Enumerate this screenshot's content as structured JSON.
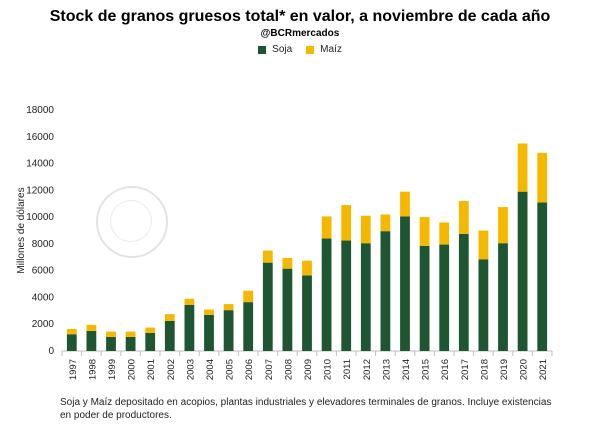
{
  "header": {
    "title": "Stock de granos gruesos total* en valor, a noviembre de cada año",
    "subtitle": "@BCRmercados"
  },
  "footnote": "Soja y Maíz depositado en acopios, plantas industriales y elevadores terminales de granos. Incluye existencias en poder de productores.",
  "chart_data": {
    "type": "bar",
    "stacked": true,
    "title": "Stock de granos gruesos total* en valor, a noviembre de cada año",
    "xlabel": "",
    "ylabel": "Millones de dólares",
    "ylim": [
      0,
      18000
    ],
    "yticks": [
      0,
      2000,
      4000,
      6000,
      8000,
      10000,
      12000,
      14000,
      16000,
      18000
    ],
    "grid": false,
    "legend_position": "top",
    "categories": [
      "1997",
      "1998",
      "1999",
      "2000",
      "2001",
      "2002",
      "2003",
      "2004",
      "2005",
      "2006",
      "2007",
      "2008",
      "2009",
      "2010",
      "2011",
      "2012",
      "2013",
      "2014",
      "2015",
      "2016",
      "2017",
      "2018",
      "2019",
      "2020",
      "2021"
    ],
    "series": [
      {
        "name": "Soja",
        "color": "#1e5631",
        "values": [
          1250,
          1500,
          1050,
          1050,
          1350,
          2250,
          3450,
          2700,
          3050,
          3650,
          6600,
          6150,
          5650,
          8400,
          8250,
          8050,
          8950,
          10050,
          7850,
          7950,
          8750,
          6850,
          8050,
          11900,
          11100
        ]
      },
      {
        "name": "Maíz",
        "color": "#f5b800",
        "values": [
          400,
          450,
          400,
          400,
          400,
          500,
          450,
          400,
          450,
          850,
          900,
          800,
          1100,
          1650,
          2650,
          2050,
          1250,
          1850,
          2150,
          1650,
          2450,
          2150,
          2700,
          3600,
          3700
        ]
      }
    ]
  }
}
